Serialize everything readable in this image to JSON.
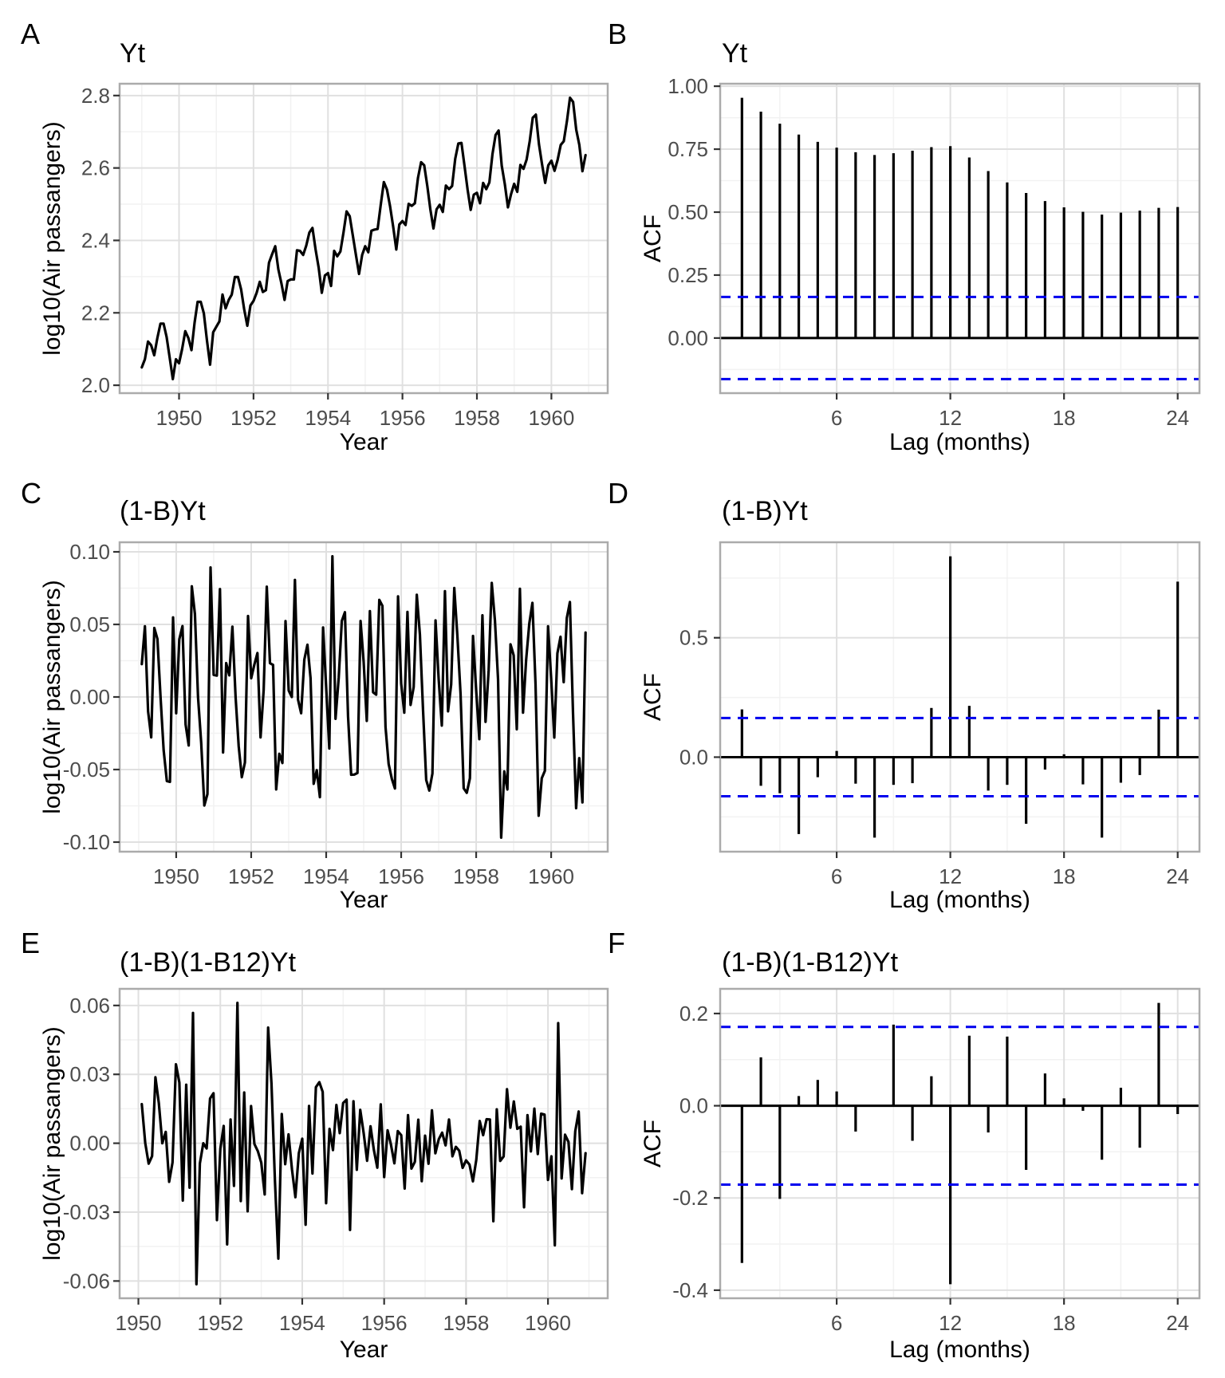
{
  "colors": {
    "series": "#000000",
    "confidence_band": "#0000EE",
    "grid_major": "#E0E0E0",
    "grid_minor": "#F2F2F2",
    "panel_border": "#ABABAB",
    "tick_mark": "#333333",
    "tick_label": "#4D4D4D",
    "background": "#FFFFFF"
  },
  "chart_data": [
    {
      "letter": "A",
      "type": "line",
      "title": "Yt",
      "xlabel": "Year",
      "ylabel": "log10(Air passangers)",
      "transform": "log10",
      "x_start_year": 1949,
      "samples_per_year": 12,
      "monthly_passengers": [
        112,
        118,
        132,
        129,
        121,
        135,
        148,
        148,
        136,
        119,
        104,
        118,
        115,
        126,
        141,
        135,
        125,
        149,
        170,
        170,
        158,
        133,
        114,
        140,
        145,
        150,
        178,
        163,
        172,
        178,
        199,
        199,
        184,
        162,
        146,
        166,
        171,
        180,
        193,
        181,
        183,
        218,
        230,
        242,
        209,
        191,
        172,
        194,
        196,
        196,
        236,
        235,
        229,
        243,
        264,
        272,
        237,
        211,
        180,
        201,
        204,
        188,
        235,
        227,
        234,
        264,
        302,
        293,
        259,
        229,
        203,
        229,
        242,
        233,
        267,
        269,
        270,
        315,
        364,
        347,
        312,
        274,
        237,
        278,
        284,
        277,
        317,
        313,
        318,
        374,
        413,
        405,
        355,
        306,
        271,
        306,
        315,
        301,
        356,
        348,
        355,
        422,
        465,
        467,
        404,
        347,
        305,
        336,
        340,
        318,
        362,
        348,
        363,
        435,
        491,
        505,
        404,
        359,
        310,
        337,
        360,
        342,
        406,
        396,
        420,
        472,
        548,
        559,
        463,
        407,
        362,
        405,
        417,
        391,
        419,
        461,
        472,
        535,
        622,
        606,
        508,
        461,
        390,
        432
      ],
      "x_tick_values": [
        1950,
        1952,
        1954,
        1956,
        1958,
        1960
      ],
      "x_tick_labels": [
        "1950",
        "1952",
        "1954",
        "1956",
        "1958",
        "1960"
      ],
      "x_minor": [
        1949,
        1951,
        1953,
        1955,
        1957,
        1959,
        1961
      ],
      "y_tick_values": [
        2.0,
        2.2,
        2.4,
        2.6,
        2.8
      ],
      "y_tick_labels": [
        "2.0",
        "2.2",
        "2.4",
        "2.6",
        "2.8"
      ],
      "y_minor": [
        1.9,
        2.1,
        2.3,
        2.5,
        2.7,
        2.9
      ]
    },
    {
      "letter": "B",
      "type": "acf",
      "title": "Yt",
      "xlabel": "Lag (months)",
      "ylabel": "ACF",
      "ci": 0.163,
      "acf_values": [
        0.954,
        0.899,
        0.851,
        0.808,
        0.779,
        0.756,
        0.738,
        0.727,
        0.734,
        0.744,
        0.758,
        0.762,
        0.717,
        0.663,
        0.618,
        0.576,
        0.544,
        0.519,
        0.501,
        0.49,
        0.498,
        0.506,
        0.517,
        0.52
      ],
      "x_tick_values": [
        6,
        12,
        18,
        24
      ],
      "x_tick_labels": [
        "6",
        "12",
        "18",
        "24"
      ],
      "x_minor": [
        3,
        9,
        15,
        21
      ],
      "y_tick_values": [
        0.0,
        0.25,
        0.5,
        0.75,
        1.0
      ],
      "y_tick_labels": [
        "0.00",
        "0.25",
        "0.50",
        "0.75",
        "1.00"
      ],
      "y_minor": [
        -0.125,
        0.125,
        0.375,
        0.625,
        0.875
      ]
    },
    {
      "letter": "C",
      "type": "line",
      "title": "(1-B)Yt",
      "xlabel": "Year",
      "ylabel": "log10(Air passangers)",
      "transform": "diff1_of_log10",
      "derived_from": "log10 of panel A monthly_passengers",
      "x_tick_values": [
        1950,
        1952,
        1954,
        1956,
        1958,
        1960
      ],
      "x_tick_labels": [
        "1950",
        "1952",
        "1954",
        "1956",
        "1958",
        "1960"
      ],
      "x_minor": [
        1949,
        1951,
        1953,
        1955,
        1957,
        1959,
        1961
      ],
      "y_tick_values": [
        -0.1,
        -0.05,
        0.0,
        0.05,
        0.1
      ],
      "y_tick_labels": [
        "-0.10",
        "-0.05",
        "0.00",
        "0.05",
        "0.10"
      ],
      "y_minor": [
        -0.075,
        -0.025,
        0.025,
        0.075
      ]
    },
    {
      "letter": "D",
      "type": "acf",
      "title": "(1-B)Yt",
      "xlabel": "Lag (months)",
      "ylabel": "ACF",
      "ci": 0.164,
      "acf_values": [
        0.2,
        -0.12,
        -0.151,
        -0.322,
        -0.084,
        0.026,
        -0.111,
        -0.337,
        -0.116,
        -0.109,
        0.206,
        0.841,
        0.215,
        -0.14,
        -0.116,
        -0.279,
        -0.052,
        0.012,
        -0.114,
        -0.337,
        -0.107,
        -0.075,
        0.199,
        0.735
      ],
      "x_tick_values": [
        6,
        12,
        18,
        24
      ],
      "x_tick_labels": [
        "6",
        "12",
        "18",
        "24"
      ],
      "x_minor": [
        3,
        9,
        15,
        21
      ],
      "y_tick_values": [
        0.0,
        0.5
      ],
      "y_tick_labels": [
        "0.0",
        "0.5"
      ],
      "y_minor": [
        -0.25,
        0.25,
        0.75
      ]
    },
    {
      "letter": "E",
      "type": "line",
      "title": "(1-B)(1-B12)Yt",
      "xlabel": "Year",
      "ylabel": "log10(Air passangers)",
      "transform": "diff1_diff12_of_log10",
      "derived_from": "log10 of panel A monthly_passengers",
      "x_tick_values": [
        1950,
        1952,
        1954,
        1956,
        1958,
        1960
      ],
      "x_tick_labels": [
        "1950",
        "1952",
        "1954",
        "1956",
        "1958",
        "1960"
      ],
      "x_minor": [
        1949,
        1951,
        1953,
        1955,
        1957,
        1959,
        1961
      ],
      "y_tick_values": [
        -0.06,
        -0.03,
        0.0,
        0.03,
        0.06
      ],
      "y_tick_labels": [
        "-0.06",
        "-0.03",
        "0.00",
        "0.03",
        "0.06"
      ],
      "y_minor": [
        -0.045,
        -0.015,
        0.015,
        0.045
      ]
    },
    {
      "letter": "F",
      "type": "acf",
      "title": "(1-B)(1-B12)Yt",
      "xlabel": "Lag (months)",
      "ylabel": "ACF",
      "ci": 0.171,
      "acf_values": [
        -0.341,
        0.105,
        -0.202,
        0.021,
        0.056,
        0.031,
        -0.056,
        -0.001,
        0.176,
        -0.076,
        0.064,
        -0.387,
        0.152,
        -0.058,
        0.15,
        -0.139,
        0.07,
        0.016,
        -0.011,
        -0.117,
        0.039,
        -0.091,
        0.223,
        -0.018
      ],
      "x_tick_values": [
        6,
        12,
        18,
        24
      ],
      "x_tick_labels": [
        "6",
        "12",
        "18",
        "24"
      ],
      "x_minor": [
        3,
        9,
        15,
        21
      ],
      "y_tick_values": [
        -0.4,
        -0.2,
        0.0,
        0.2
      ],
      "y_tick_labels": [
        "-0.4",
        "-0.2",
        "0.0",
        "0.2"
      ],
      "y_minor": [
        -0.3,
        -0.1,
        0.1
      ]
    }
  ]
}
